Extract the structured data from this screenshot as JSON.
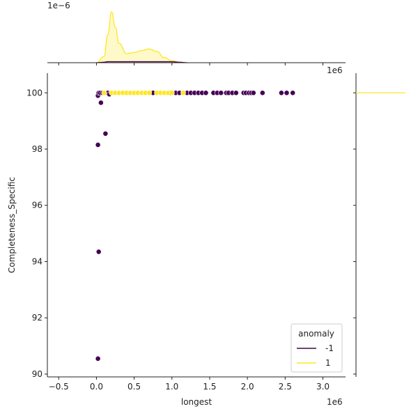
{
  "chart_data": {
    "type": "scatter",
    "xlabel": "longest",
    "ylabel": "Completeness_Specific",
    "x_offset_label": "1e6",
    "top_offset_label": "1e−6",
    "right_offset_label": "1e6",
    "xlim": [
      -0.65,
      3.3
    ],
    "ylim": [
      89.9,
      100.7
    ],
    "xticks": [
      {
        "v": -0.5,
        "label": "−0.5"
      },
      {
        "v": 0.0,
        "label": "0.0"
      },
      {
        "v": 0.5,
        "label": "0.5"
      },
      {
        "v": 1.0,
        "label": "1.0"
      },
      {
        "v": 1.5,
        "label": "1.5"
      },
      {
        "v": 2.0,
        "label": "2.0"
      },
      {
        "v": 2.5,
        "label": "2.5"
      },
      {
        "v": 3.0,
        "label": "3.0"
      }
    ],
    "yticks": [
      {
        "v": 90,
        "label": "90"
      },
      {
        "v": 92,
        "label": "92"
      },
      {
        "v": 94,
        "label": "94"
      },
      {
        "v": 96,
        "label": "96"
      },
      {
        "v": 98,
        "label": "98"
      },
      {
        "v": 100,
        "label": "100"
      }
    ],
    "legend": {
      "title": "anomaly",
      "placement": "bottom-right",
      "entries": [
        {
          "label": "-1",
          "color": "#440154"
        },
        {
          "label": "1",
          "color": "#fde725"
        }
      ]
    },
    "series": [
      {
        "color": "#440154",
        "points": [
          [
            0.02,
            98.15
          ],
          [
            0.03,
            94.35
          ],
          [
            0.02,
            90.55
          ],
          [
            0.06,
            99.65
          ],
          [
            0.12,
            98.55
          ],
          [
            0.02,
            99.9
          ],
          [
            0.03,
            100.0
          ],
          [
            0.05,
            100.0
          ],
          [
            0.08,
            100.0
          ],
          [
            0.15,
            100.0
          ],
          [
            0.17,
            99.95
          ],
          [
            0.75,
            100.0
          ],
          [
            0.98,
            100.0
          ],
          [
            1.05,
            100.0
          ],
          [
            1.1,
            100.0
          ],
          [
            1.2,
            100.0
          ],
          [
            1.25,
            100.0
          ],
          [
            1.3,
            100.0
          ],
          [
            1.35,
            100.0
          ],
          [
            1.4,
            100.0
          ],
          [
            1.45,
            100.0
          ],
          [
            1.55,
            100.0
          ],
          [
            1.6,
            100.0
          ],
          [
            1.65,
            100.0
          ],
          [
            1.72,
            100.0
          ],
          [
            1.75,
            100.0
          ],
          [
            1.8,
            100.0
          ],
          [
            1.85,
            100.0
          ],
          [
            1.95,
            100.0
          ],
          [
            1.98,
            100.0
          ],
          [
            2.02,
            100.0
          ],
          [
            2.05,
            100.0
          ],
          [
            2.08,
            100.0
          ],
          [
            2.2,
            100.0
          ],
          [
            2.45,
            100.0
          ],
          [
            2.52,
            100.0
          ],
          [
            2.6,
            100.0
          ]
        ]
      },
      {
        "color": "#fde725",
        "points": [
          [
            0.1,
            100.0
          ],
          [
            0.2,
            100.0
          ],
          [
            0.25,
            100.0
          ],
          [
            0.3,
            100.0
          ],
          [
            0.35,
            100.0
          ],
          [
            0.4,
            100.0
          ],
          [
            0.45,
            100.0
          ],
          [
            0.5,
            100.0
          ],
          [
            0.55,
            100.0
          ],
          [
            0.6,
            100.0
          ],
          [
            0.65,
            100.0
          ],
          [
            0.7,
            100.0
          ],
          [
            0.8,
            100.0
          ],
          [
            0.85,
            100.0
          ],
          [
            0.9,
            100.0
          ],
          [
            0.95,
            100.0
          ],
          [
            1.0,
            100.0
          ],
          [
            1.15,
            100.0
          ]
        ]
      }
    ],
    "top_marginal": {
      "type": "kde",
      "x": [
        0.0,
        0.1,
        0.15,
        0.2,
        0.25,
        0.3,
        0.4,
        0.5,
        0.6,
        0.7,
        0.8,
        0.9,
        1.0,
        1.1,
        1.2
      ],
      "series": [
        {
          "color": "#fde725",
          "values": [
            0.0,
            0.12,
            0.55,
            1.0,
            0.7,
            0.38,
            0.18,
            0.2,
            0.24,
            0.27,
            0.22,
            0.1,
            0.04,
            0.01,
            0.0
          ]
        },
        {
          "color": "#440154",
          "values": [
            0.0,
            0.01,
            0.02,
            0.02,
            0.02,
            0.02,
            0.02,
            0.02,
            0.02,
            0.02,
            0.02,
            0.02,
            0.02,
            0.01,
            0.0
          ]
        }
      ]
    },
    "right_marginal": {
      "type": "kde",
      "series": [
        {
          "color": "#fde725",
          "y": 100.0
        }
      ]
    }
  }
}
